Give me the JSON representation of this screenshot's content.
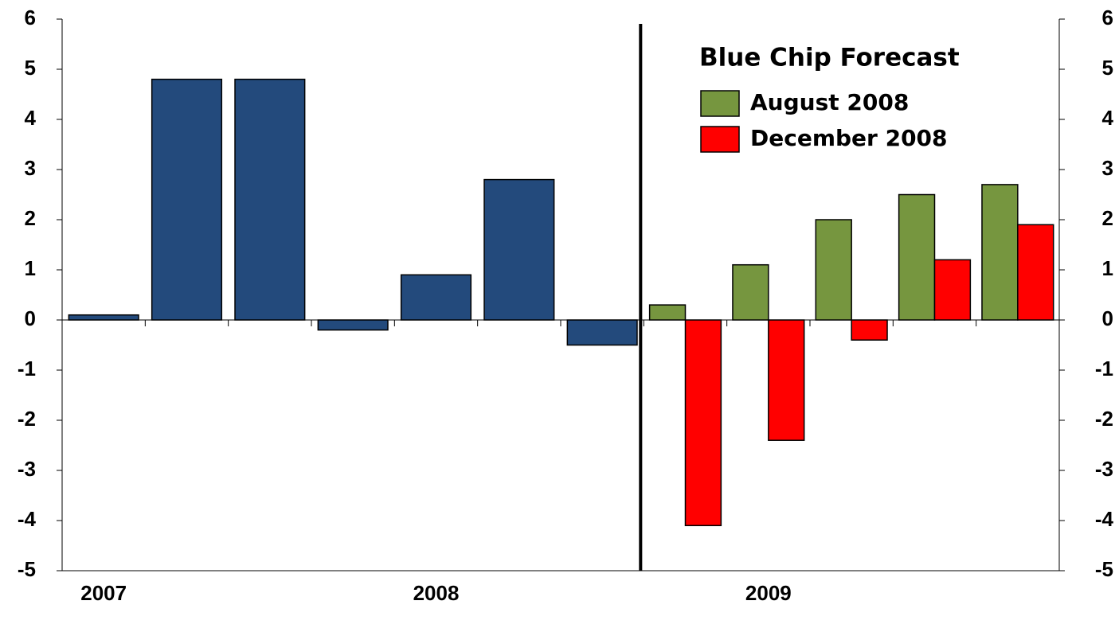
{
  "chart_data": {
    "type": "bar",
    "legend_title": "Blue Chip Forecast",
    "categories": [
      "2007",
      null,
      null,
      null,
      "2008",
      null,
      null,
      null,
      "2009",
      null,
      null,
      null
    ],
    "series": [
      {
        "color": "#234a7c",
        "values": [
          0.1,
          4.8,
          4.8,
          -0.2,
          0.9,
          2.8,
          -0.5,
          null,
          null,
          null,
          null,
          null
        ]
      },
      {
        "name": "August 2008",
        "color": "#76963f",
        "values": [
          null,
          null,
          null,
          null,
          null,
          null,
          null,
          0.3,
          1.1,
          2.0,
          2.5,
          2.7
        ]
      },
      {
        "name": "December 2008",
        "color": "#ff0000",
        "values": [
          null,
          null,
          null,
          null,
          null,
          null,
          null,
          -4.1,
          -2.4,
          -0.4,
          1.2,
          1.9
        ]
      }
    ],
    "ylim": [
      -5,
      6
    ],
    "yticks": [
      -5,
      -4,
      -3,
      -2,
      -1,
      0,
      1,
      2,
      3,
      4,
      5,
      6
    ],
    "y2lim": [
      -5,
      6
    ],
    "y2ticks": [
      -5,
      -4,
      -3,
      -2,
      -1,
      0,
      1,
      2,
      3,
      4,
      5,
      6
    ]
  }
}
